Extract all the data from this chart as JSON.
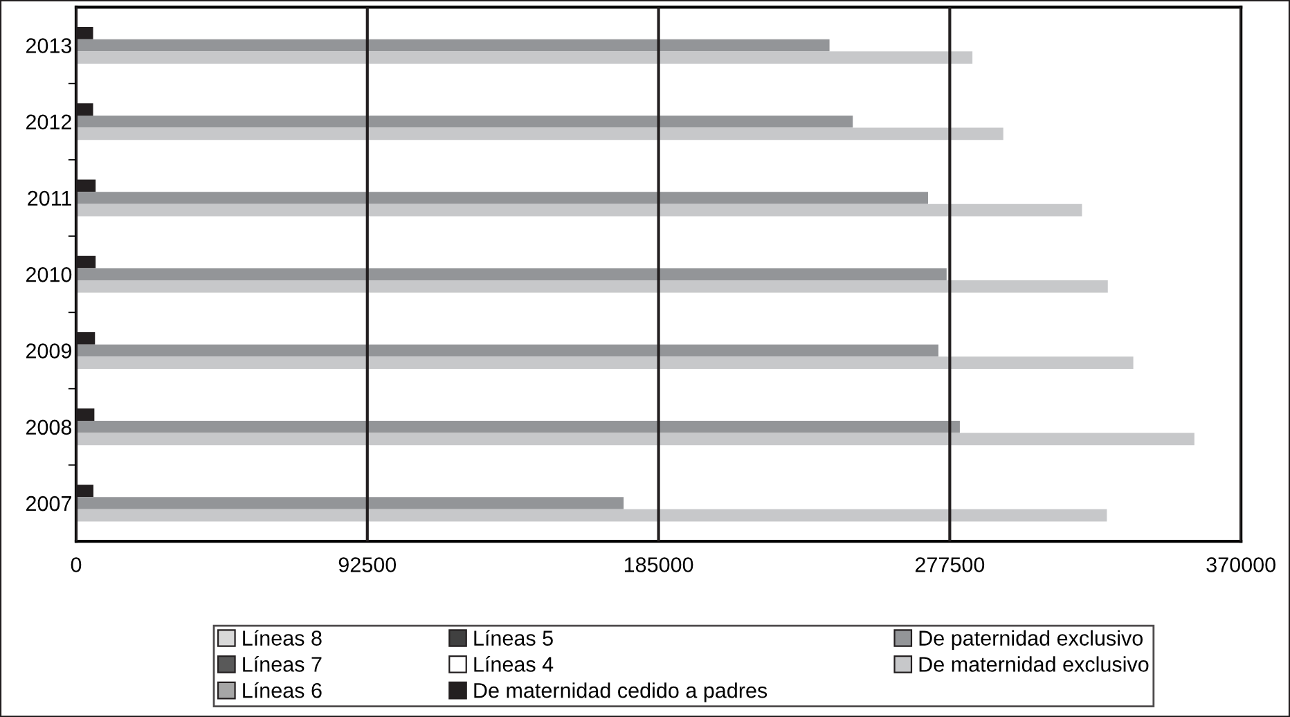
{
  "chart_data": {
    "type": "bar",
    "orientation": "horizontal",
    "categories": [
      "2013",
      "2012",
      "2011",
      "2010",
      "2009",
      "2008",
      "2007"
    ],
    "series": [
      {
        "name": "Líneas 8",
        "color": "#d9d9d9",
        "values": [
          null,
          null,
          null,
          null,
          null,
          null,
          null
        ]
      },
      {
        "name": "Líneas 7",
        "color": "#595959",
        "values": [
          null,
          null,
          null,
          null,
          null,
          null,
          null
        ]
      },
      {
        "name": "Líneas 6",
        "color": "#a6a6a6",
        "values": [
          null,
          null,
          null,
          null,
          null,
          null,
          null
        ]
      },
      {
        "name": "Líneas 5",
        "color": "#404040",
        "values": [
          null,
          null,
          null,
          null,
          null,
          null,
          null
        ]
      },
      {
        "name": "Líneas 4",
        "color": "#ffffff",
        "values": [
          null,
          null,
          null,
          null,
          null,
          null,
          null
        ]
      },
      {
        "name": "De maternidad cedido a padres",
        "color": "#231f20",
        "values": [
          5400,
          5400,
          6200,
          6200,
          6000,
          5800,
          5500
        ]
      },
      {
        "name": "De paternidad exclusivo",
        "color": "#939598",
        "values": [
          239300,
          246700,
          270600,
          276500,
          273900,
          280700,
          173900
        ]
      },
      {
        "name": "De maternidad exclusivo",
        "color": "#c7c8ca",
        "values": [
          284700,
          294500,
          319500,
          327700,
          335800,
          355200,
          327400
        ]
      }
    ],
    "xlim": [
      0,
      370000
    ],
    "xticks": [
      0,
      92500,
      185000,
      277500,
      370000
    ],
    "grid": "x",
    "legend": "bottom"
  }
}
